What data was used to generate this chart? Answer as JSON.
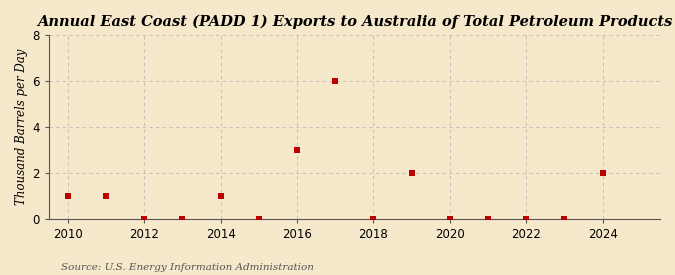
{
  "title": "Annual East Coast (PADD 1) Exports to Australia of Total Petroleum Products",
  "ylabel": "Thousand Barrels per Day",
  "source": "Source: U.S. Energy Information Administration",
  "background_color": "#f5e8cb",
  "plot_background_color": "#f5e8cb",
  "marker_color": "#bb0000",
  "grid_color": "#bbbbbb",
  "years": [
    2010,
    2011,
    2012,
    2013,
    2014,
    2015,
    2016,
    2017,
    2018,
    2019,
    2020,
    2021,
    2022,
    2023,
    2024
  ],
  "values": [
    1,
    1,
    0,
    0,
    1,
    0,
    3,
    6,
    0,
    2,
    0,
    0,
    0,
    0,
    2
  ],
  "xlim": [
    2009.5,
    2025.5
  ],
  "ylim": [
    0,
    8
  ],
  "yticks": [
    0,
    2,
    4,
    6,
    8
  ],
  "xticks": [
    2010,
    2012,
    2014,
    2016,
    2018,
    2020,
    2022,
    2024
  ],
  "title_fontsize": 10.5,
  "label_fontsize": 8.5,
  "tick_fontsize": 8.5,
  "source_fontsize": 7.5
}
